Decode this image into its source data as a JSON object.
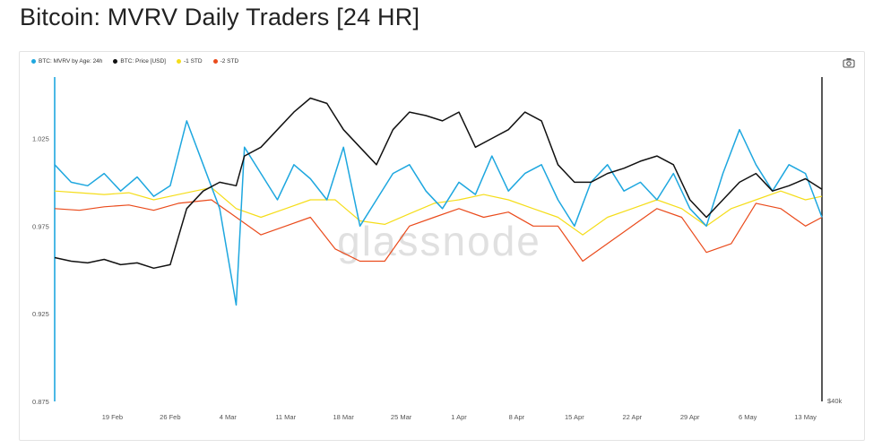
{
  "page": {
    "title": "Bitcoin: MVRV Daily Traders [24 HR]"
  },
  "watermark": "glassnode",
  "toolbar": {
    "camera_icon": "camera-icon"
  },
  "colors": {
    "mvrv": "#1ea7df",
    "price": "#111111",
    "std1": "#f5dd1a",
    "std2": "#ea4b1c",
    "grid": "#eeeeee"
  },
  "chart_data": {
    "type": "line",
    "title": "Bitcoin: MVRV Daily Traders [24 HR]",
    "legend": [
      {
        "name": "BTC: MVRV by Age: 24h",
        "color": "#1ea7df"
      },
      {
        "name": "BTC: Price [USD]",
        "color": "#111111"
      },
      {
        "name": "-1 STD",
        "color": "#f5dd1a"
      },
      {
        "name": "-2 STD",
        "color": "#ea4b1c"
      }
    ],
    "x_ticks": [
      "19 Feb",
      "26 Feb",
      "4 Mar",
      "11 Mar",
      "18 Mar",
      "25 Mar",
      "1 Apr",
      "8 Apr",
      "15 Apr",
      "22 Apr",
      "29 Apr",
      "6 May",
      "13 May"
    ],
    "y_ticks_left": [
      "1.025",
      "0.975",
      "0.925",
      "0.875"
    ],
    "y_ticks_right": [
      "$40k"
    ],
    "ylim": [
      0.875,
      1.06
    ],
    "y_right_label_value": 40000,
    "grid": false,
    "legend_position": "top-left",
    "series": [
      {
        "name": "BTC: MVRV by Age: 24h",
        "x": [
          "12 Feb",
          "14 Feb",
          "16 Feb",
          "18 Feb",
          "20 Feb",
          "22 Feb",
          "24 Feb",
          "26 Feb",
          "28 Feb",
          "1 Mar",
          "3 Mar",
          "5 Mar",
          "6 Mar",
          "8 Mar",
          "10 Mar",
          "12 Mar",
          "14 Mar",
          "16 Mar",
          "18 Mar",
          "20 Mar",
          "22 Mar",
          "24 Mar",
          "26 Mar",
          "28 Mar",
          "30 Mar",
          "1 Apr",
          "3 Apr",
          "5 Apr",
          "7 Apr",
          "9 Apr",
          "11 Apr",
          "13 Apr",
          "15 Apr",
          "17 Apr",
          "19 Apr",
          "21 Apr",
          "23 Apr",
          "25 Apr",
          "27 Apr",
          "29 Apr",
          "1 May",
          "3 May",
          "5 May",
          "7 May",
          "9 May",
          "11 May",
          "13 May",
          "15 May"
        ],
        "values": [
          1.01,
          1.0,
          0.998,
          1.005,
          0.995,
          1.003,
          0.992,
          0.998,
          1.035,
          1.01,
          0.985,
          0.93,
          1.02,
          1.005,
          0.99,
          1.01,
          1.002,
          0.99,
          1.02,
          0.975,
          0.99,
          1.005,
          1.01,
          0.995,
          0.985,
          1.0,
          0.993,
          1.015,
          0.995,
          1.005,
          1.01,
          0.99,
          0.975,
          1.0,
          1.01,
          0.995,
          1.0,
          0.99,
          1.005,
          0.985,
          0.975,
          1.005,
          1.03,
          1.01,
          0.995,
          1.01,
          1.005,
          0.98
        ]
      },
      {
        "name": "BTC: Price [USD]",
        "x": [
          "12 Feb",
          "14 Feb",
          "16 Feb",
          "18 Feb",
          "20 Feb",
          "22 Feb",
          "24 Feb",
          "26 Feb",
          "28 Feb",
          "1 Mar",
          "3 Mar",
          "5 Mar",
          "6 Mar",
          "8 Mar",
          "10 Mar",
          "12 Mar",
          "14 Mar",
          "16 Mar",
          "18 Mar",
          "20 Mar",
          "22 Mar",
          "24 Mar",
          "26 Mar",
          "28 Mar",
          "30 Mar",
          "1 Apr",
          "3 Apr",
          "5 Apr",
          "7 Apr",
          "9 Apr",
          "11 Apr",
          "13 Apr",
          "15 Apr",
          "17 Apr",
          "19 Apr",
          "21 Apr",
          "23 Apr",
          "25 Apr",
          "27 Apr",
          "29 Apr",
          "1 May",
          "3 May",
          "5 May",
          "7 May",
          "9 May",
          "11 May",
          "13 May",
          "15 May"
        ],
        "values": [
          0.957,
          0.955,
          0.954,
          0.956,
          0.953,
          0.954,
          0.951,
          0.953,
          0.985,
          0.995,
          1.0,
          0.998,
          1.015,
          1.02,
          1.03,
          1.04,
          1.048,
          1.045,
          1.03,
          1.02,
          1.01,
          1.03,
          1.04,
          1.038,
          1.035,
          1.04,
          1.02,
          1.025,
          1.03,
          1.04,
          1.035,
          1.01,
          1.0,
          1.0,
          1.005,
          1.008,
          1.012,
          1.015,
          1.01,
          0.99,
          0.98,
          0.99,
          1.0,
          1.005,
          0.995,
          0.998,
          1.002,
          0.996
        ]
      },
      {
        "name": "-1 STD",
        "x": [
          "12 Feb",
          "15 Feb",
          "18 Feb",
          "21 Feb",
          "24 Feb",
          "27 Feb",
          "2 Mar",
          "5 Mar",
          "8 Mar",
          "11 Mar",
          "14 Mar",
          "17 Mar",
          "20 Mar",
          "23 Mar",
          "26 Mar",
          "29 Mar",
          "1 Apr",
          "4 Apr",
          "7 Apr",
          "10 Apr",
          "13 Apr",
          "16 Apr",
          "19 Apr",
          "22 Apr",
          "25 Apr",
          "28 Apr",
          "1 May",
          "4 May",
          "7 May",
          "10 May",
          "13 May",
          "15 May"
        ],
        "values": [
          0.995,
          0.994,
          0.993,
          0.994,
          0.99,
          0.993,
          0.997,
          0.985,
          0.98,
          0.985,
          0.99,
          0.99,
          0.978,
          0.976,
          0.982,
          0.988,
          0.99,
          0.993,
          0.99,
          0.985,
          0.98,
          0.97,
          0.98,
          0.985,
          0.99,
          0.985,
          0.975,
          0.985,
          0.99,
          0.995,
          0.99,
          0.992
        ]
      },
      {
        "name": "-2 STD",
        "x": [
          "12 Feb",
          "15 Feb",
          "18 Feb",
          "21 Feb",
          "24 Feb",
          "27 Feb",
          "2 Mar",
          "5 Mar",
          "8 Mar",
          "11 Mar",
          "14 Mar",
          "17 Mar",
          "20 Mar",
          "23 Mar",
          "26 Mar",
          "29 Mar",
          "1 Apr",
          "4 Apr",
          "7 Apr",
          "10 Apr",
          "13 Apr",
          "16 Apr",
          "19 Apr",
          "22 Apr",
          "25 Apr",
          "28 Apr",
          "1 May",
          "4 May",
          "7 May",
          "10 May",
          "13 May",
          "15 May"
        ],
        "values": [
          0.985,
          0.984,
          0.986,
          0.987,
          0.984,
          0.988,
          0.99,
          0.98,
          0.97,
          0.975,
          0.98,
          0.962,
          0.955,
          0.955,
          0.975,
          0.98,
          0.985,
          0.98,
          0.983,
          0.975,
          0.975,
          0.955,
          0.965,
          0.975,
          0.985,
          0.98,
          0.96,
          0.965,
          0.988,
          0.985,
          0.975,
          0.98
        ]
      }
    ]
  }
}
